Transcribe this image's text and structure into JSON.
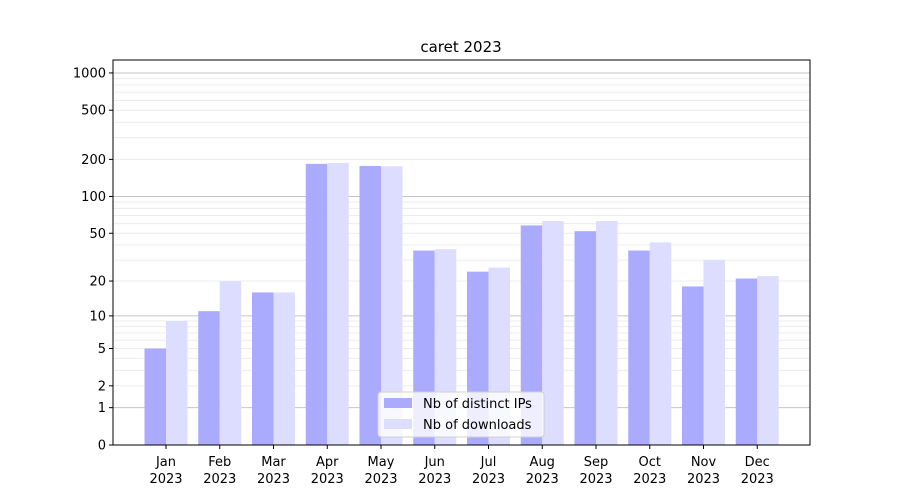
{
  "chart_data": {
    "type": "bar",
    "title": "caret 2023",
    "xlabel": "",
    "ylabel": "",
    "y_scale": "log(1+y)",
    "ylim": [
      0,
      1300
    ],
    "yticks": [
      0,
      1,
      2,
      5,
      10,
      20,
      50,
      100,
      200,
      500,
      1000
    ],
    "grid": true,
    "legend_position": "bottom-center",
    "categories": [
      "Jan\n2023",
      "Feb\n2023",
      "Mar\n2023",
      "Apr\n2023",
      "May\n2023",
      "Jun\n2023",
      "Jul\n2023",
      "Aug\n2023",
      "Sep\n2023",
      "Oct\n2023",
      "Nov\n2023",
      "Dec\n2023"
    ],
    "series": [
      {
        "name": "Nb of distinct IPs",
        "color": "#aaaaff",
        "values": [
          5,
          11,
          16,
          184,
          177,
          36,
          24,
          58,
          52,
          36,
          18,
          21
        ]
      },
      {
        "name": "Nb of downloads",
        "color": "#ddddff",
        "values": [
          9,
          20,
          16,
          187,
          176,
          37,
          26,
          63,
          63,
          42,
          30,
          22
        ]
      }
    ]
  }
}
